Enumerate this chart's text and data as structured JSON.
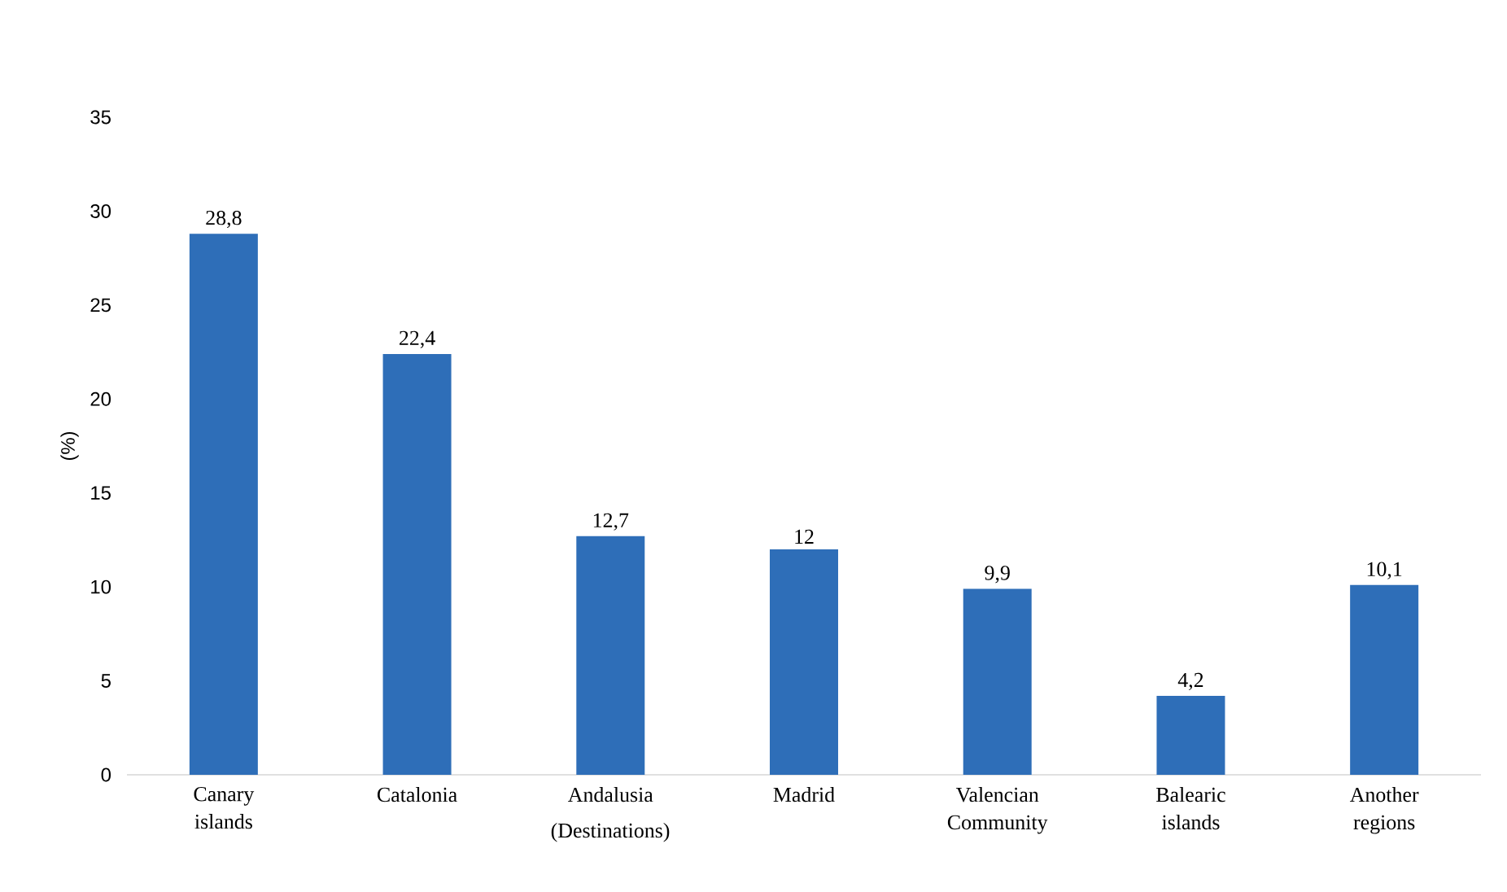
{
  "chart_data": {
    "type": "bar",
    "xlabel": "(Destinations)",
    "ylabel": "(%)",
    "categories": [
      "Canary islands",
      "Catalonia",
      "Andalusia",
      "Madrid",
      "Valencian Community",
      "Balearic islands",
      "Another regions"
    ],
    "values": [
      28.8,
      22.4,
      12.7,
      12,
      9.9,
      4.2,
      10.1
    ],
    "value_labels": [
      "28,8",
      "22,4",
      "12,7",
      "12",
      "9,9",
      "4,2",
      "10,1"
    ],
    "color": "#2e6eb8",
    "ylim": [
      0,
      35
    ],
    "yticks": [
      0,
      5,
      10,
      15,
      20,
      25,
      30,
      35
    ]
  }
}
